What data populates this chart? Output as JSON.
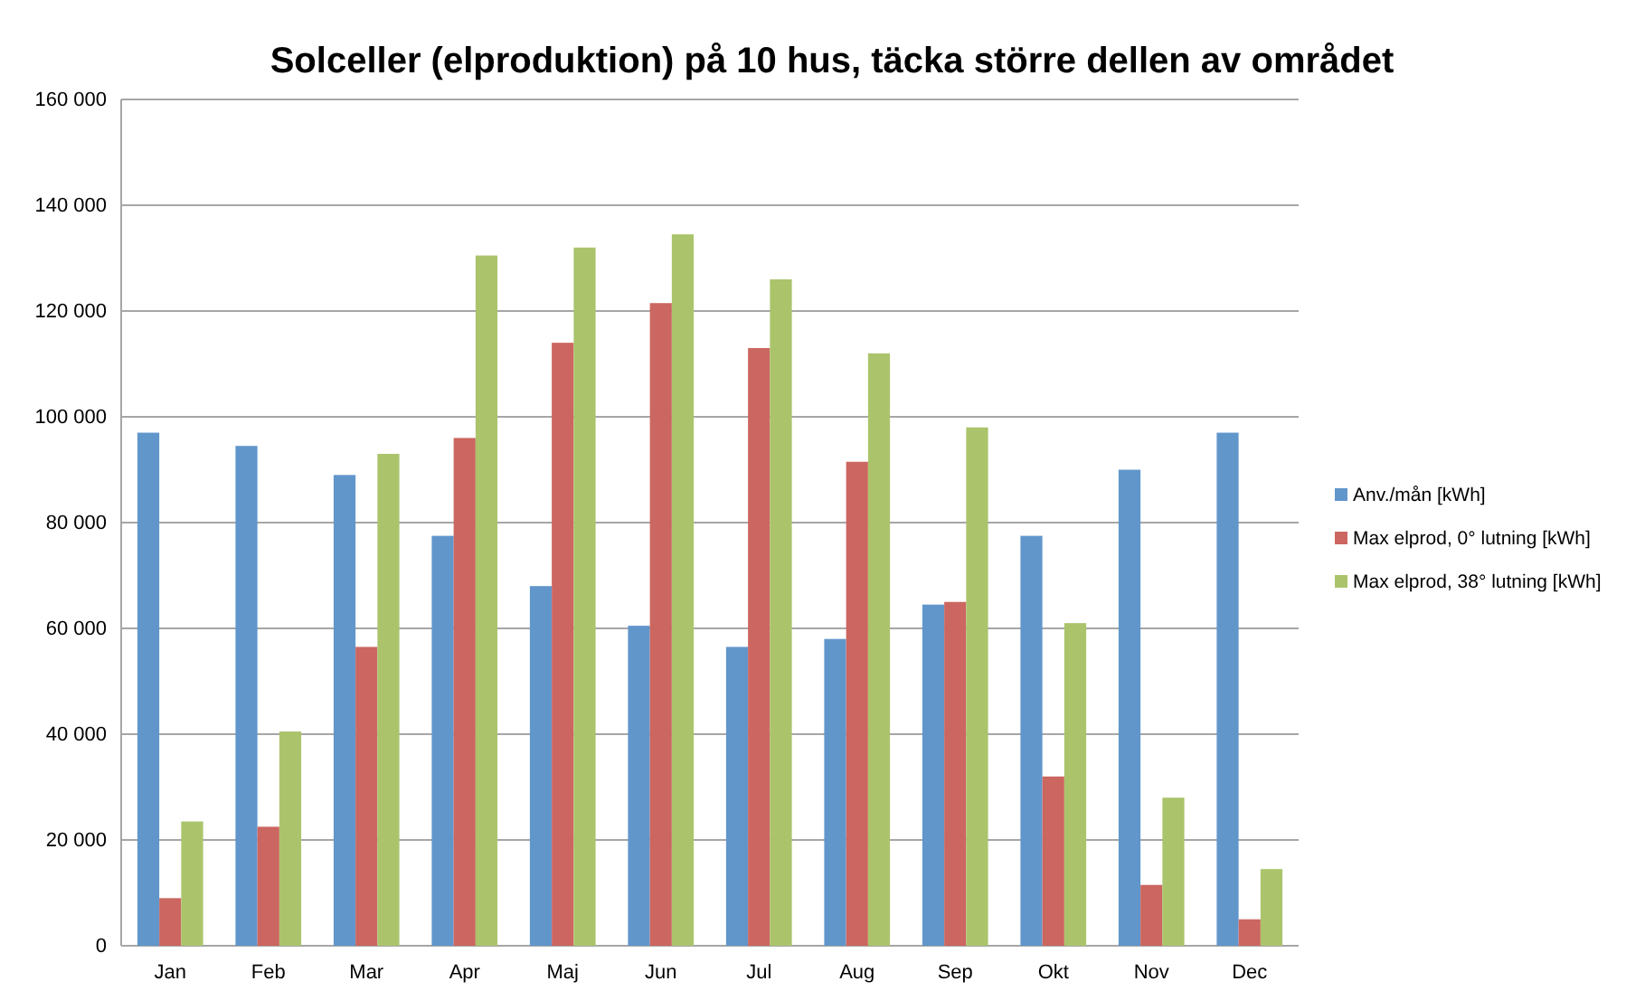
{
  "chart_data": {
    "type": "bar",
    "title": "Solceller (elproduktion) på 10 hus, täcka större dellen av området",
    "categories": [
      "Jan",
      "Feb",
      "Mar",
      "Apr",
      "Maj",
      "Jun",
      "Jul",
      "Aug",
      "Sep",
      "Okt",
      "Nov",
      "Dec"
    ],
    "series": [
      {
        "name": "Anv./mån [kWh]",
        "color": "#6196cb",
        "values": [
          97000,
          94500,
          89000,
          77500,
          68000,
          60500,
          56500,
          58000,
          64500,
          77500,
          90000,
          97000
        ]
      },
      {
        "name": "Max elprod, 0° lutning [kWh]",
        "color": "#cc6660",
        "values": [
          9000,
          22500,
          56500,
          96000,
          114000,
          121500,
          113000,
          91500,
          65000,
          32000,
          11500,
          5000
        ]
      },
      {
        "name": "Max elprod, 38° lutning [kWh]",
        "color": "#abc46c",
        "values": [
          23500,
          40500,
          93000,
          130500,
          132000,
          134500,
          126000,
          112000,
          98000,
          61000,
          28000,
          14500
        ]
      }
    ],
    "ylim": [
      0,
      160000
    ],
    "yticks": [
      {
        "value": 0,
        "label": "0"
      },
      {
        "value": 20000,
        "label": "20 000"
      },
      {
        "value": 40000,
        "label": "40 000"
      },
      {
        "value": 60000,
        "label": "60 000"
      },
      {
        "value": 80000,
        "label": "80 000"
      },
      {
        "value": 100000,
        "label": "100 000"
      },
      {
        "value": 120000,
        "label": "120 000"
      },
      {
        "value": 140000,
        "label": "140 000"
      },
      {
        "value": 160000,
        "label": "160 000"
      }
    ],
    "grid": "y",
    "legend": "right"
  }
}
